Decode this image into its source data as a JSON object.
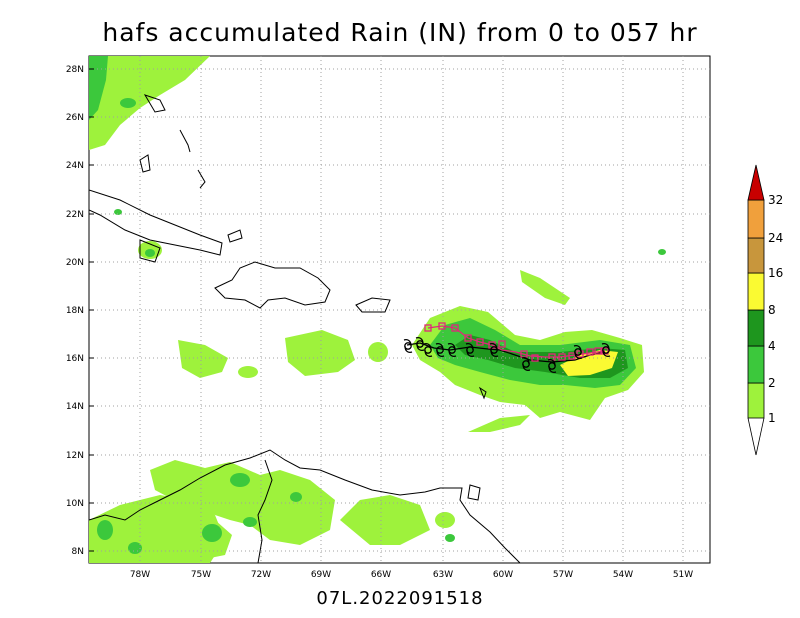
{
  "title": "hafs accumulated Rain (IN) from 0 to 057 hr",
  "footer": "07L.2022091518",
  "map": {
    "lat_labels": [
      "28N",
      "26N",
      "24N",
      "22N",
      "20N",
      "18N",
      "16N",
      "14N",
      "12N",
      "10N",
      "8N"
    ],
    "lon_labels": [
      "78W",
      "75W",
      "72W",
      "69W",
      "66W",
      "63W",
      "60W",
      "57W",
      "54W",
      "51W"
    ]
  },
  "colorbar": {
    "levels": [
      "1",
      "2",
      "4",
      "8",
      "16",
      "24",
      "32"
    ],
    "colors": [
      "#9ef23c",
      "#3cc83c",
      "#1e961e",
      "#fafa32",
      "#c8963c",
      "#f0a03c",
      "#c80000"
    ]
  },
  "track_colors": {
    "hafs_track": "#e0287a",
    "best_track": "#000000"
  },
  "icon_names": [
    "hurricane-symbol-icon",
    "track-marker-icon"
  ]
}
